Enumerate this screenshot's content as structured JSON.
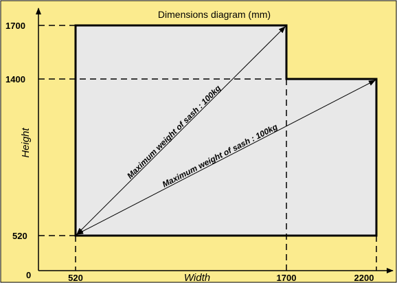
{
  "diagram": {
    "title": "Dimensions diagram (mm)",
    "x_axis_label": "Width",
    "y_axis_label": "Height",
    "origin_label": "0",
    "x_ticks": [
      "520",
      "1700",
      "2200"
    ],
    "y_ticks": [
      "1700",
      "1400",
      "520"
    ],
    "annotations": [
      "Maximum weight of sash : 100kg",
      "Maximum weight of sash : 100kg"
    ],
    "colors": {
      "background": "#fbeb8e",
      "shape_fill": "#e8e8e8",
      "outline": "#000000"
    }
  }
}
